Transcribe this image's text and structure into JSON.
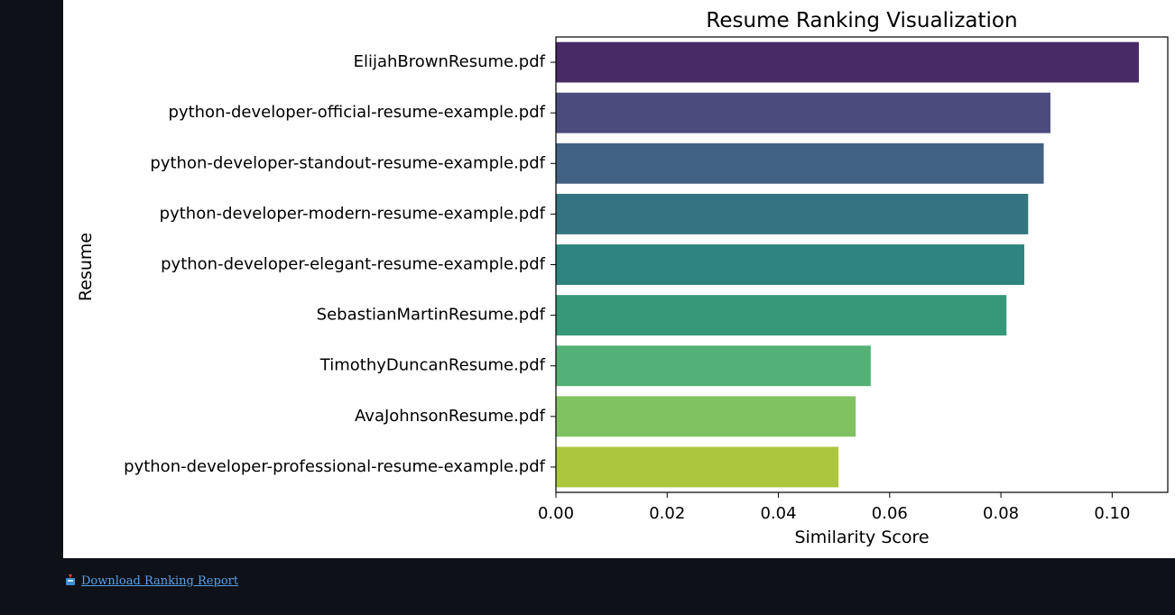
{
  "chart_data": {
    "type": "bar",
    "orientation": "horizontal",
    "title": "Resume Ranking Visualization",
    "xlabel": "Similarity Score",
    "ylabel": "Resume",
    "xlim": [
      0,
      0.11
    ],
    "xticks": [
      0.0,
      0.02,
      0.04,
      0.06,
      0.08,
      0.1
    ],
    "xtick_labels": [
      "0.00",
      "0.02",
      "0.04",
      "0.06",
      "0.08",
      "0.10"
    ],
    "grid": false,
    "categories": [
      "ElijahBrownResume.pdf",
      "python-developer-official-resume-example.pdf",
      "python-developer-standout-resume-example.pdf",
      "python-developer-modern-resume-example.pdf",
      "python-developer-elegant-resume-example.pdf",
      "SebastianMartinResume.pdf",
      "TimothyDuncanResume.pdf",
      "AvaJohnsonResume.pdf",
      "python-developer-professional-resume-example.pdf"
    ],
    "values": [
      0.1048,
      0.0889,
      0.0877,
      0.0849,
      0.0842,
      0.081,
      0.0566,
      0.0539,
      0.0508
    ],
    "colors": [
      "#482a66",
      "#4b4b7e",
      "#416283",
      "#347381",
      "#2e847e",
      "#369878",
      "#53b175",
      "#80c260",
      "#acc63d"
    ]
  },
  "download": {
    "label": "Download Ranking Report",
    "icon": "inbox-tray-icon"
  }
}
